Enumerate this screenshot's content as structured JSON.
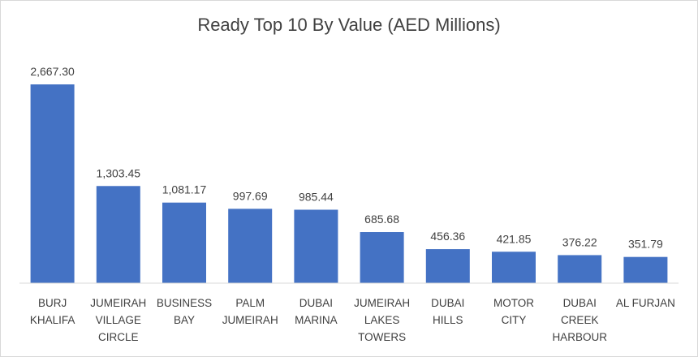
{
  "chart_data": {
    "type": "bar",
    "title": "Ready Top 10 By Value (AED Millions)",
    "xlabel": "",
    "ylabel": "",
    "ylim": [
      0,
      2667.3
    ],
    "grid": false,
    "legend": "none",
    "bar_color": "#4472C4",
    "categories": [
      [
        "BURJ",
        "KHALIFA"
      ],
      [
        "JUMEIRAH",
        "VILLAGE",
        "CIRCLE"
      ],
      [
        "BUSINESS",
        "BAY"
      ],
      [
        "PALM",
        "JUMEIRAH"
      ],
      [
        "DUBAI",
        "MARINA"
      ],
      [
        "JUMEIRAH",
        "LAKES",
        "TOWERS"
      ],
      [
        "DUBAI",
        "HILLS"
      ],
      [
        "MOTOR",
        "CITY"
      ],
      [
        "DUBAI",
        "CREEK",
        "HARBOUR"
      ],
      [
        "AL FURJAN"
      ]
    ],
    "values": [
      2667.3,
      1303.45,
      1081.17,
      997.69,
      985.44,
      685.68,
      456.36,
      421.85,
      376.22,
      351.79
    ],
    "value_labels": [
      "2,667.30",
      "1,303.45",
      "1,081.17",
      "997.69",
      "985.44",
      "685.68",
      "456.36",
      "421.85",
      "376.22",
      "351.79"
    ]
  }
}
